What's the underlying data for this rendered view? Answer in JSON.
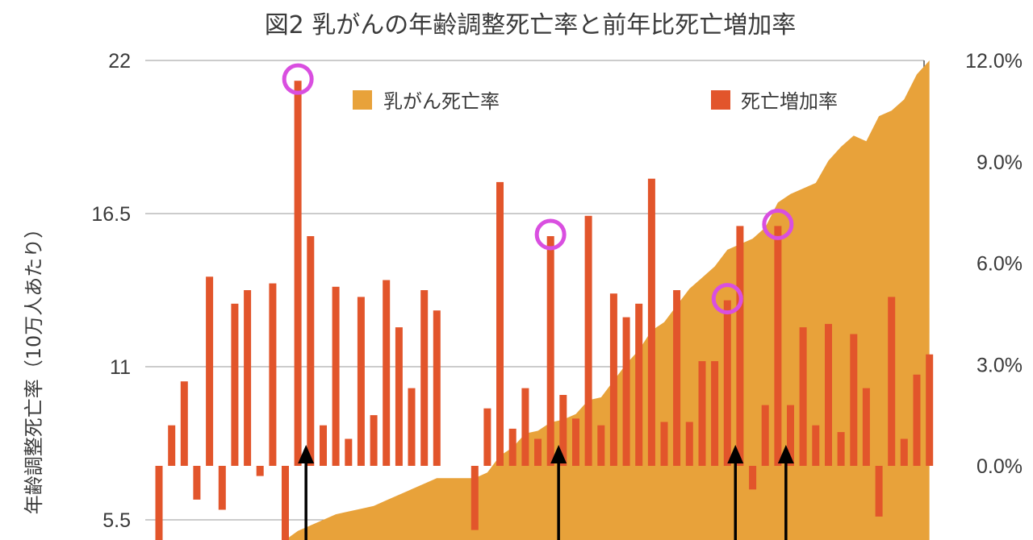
{
  "chart_data": {
    "type": "bar+area",
    "title": "図2 乳がんの年齢調整死亡率と前年比死亡増加率",
    "ylabel_left": "年齢調整死亡率（10万人あたり）",
    "y_left_ticks": [
      "22",
      "16.5",
      "11",
      "5.5"
    ],
    "y_left_values": [
      22,
      16.5,
      11,
      5.5
    ],
    "y_right_ticks": [
      "12.0%",
      "9.0%",
      "6.0%",
      "3.0%",
      "0.0%"
    ],
    "y_right_values": [
      12,
      9,
      6,
      3,
      0
    ],
    "ylim_left": [
      3,
      22.5
    ],
    "legend": {
      "placement": "top",
      "area_label": "乳がん死亡率",
      "bar_label": "死亡増加率"
    },
    "colors": {
      "area": "#E8A23A",
      "bar": "#E2552B",
      "highlight_circle": "#D94FE0",
      "arrow": "#000000"
    },
    "series": [
      {
        "name": "死亡増加率",
        "kind": "bar",
        "unit": "%",
        "values": [
          -3.1,
          1.2,
          2.5,
          -1.0,
          5.6,
          -1.3,
          4.8,
          5.2,
          -0.3,
          5.4,
          -3.1,
          11.4,
          6.8,
          1.2,
          5.3,
          0.8,
          5.0,
          1.5,
          5.5,
          4.1,
          2.3,
          5.2,
          4.6,
          0,
          0,
          -1.9,
          1.7,
          8.4,
          1.1,
          2.3,
          0.8,
          6.8,
          2.1,
          1.4,
          7.4,
          1.2,
          5.1,
          4.4,
          4.8,
          8.5,
          1.3,
          5.2,
          1.3,
          3.1,
          3.1,
          4.9,
          7.1,
          -0.7,
          1.8,
          7.1,
          1.8,
          4.1,
          1.2,
          4.2,
          1.0,
          3.9,
          2.3,
          -1.5,
          5.0,
          0.8,
          2.7,
          3.3
        ]
      },
      {
        "name": "乳がん死亡率",
        "kind": "area",
        "unit": "per 100k",
        "values": [
          3.0,
          3.0,
          3.0,
          3.0,
          3.0,
          3.0,
          3.0,
          3.0,
          3.0,
          3.0,
          3.0,
          5.1,
          5.3,
          5.5,
          5.7,
          5.8,
          5.9,
          6.0,
          6.2,
          6.4,
          6.6,
          6.8,
          7.0,
          7.0,
          7.0,
          7.0,
          7.2,
          7.8,
          8.1,
          8.6,
          8.7,
          9.0,
          9.1,
          9.3,
          9.8,
          9.9,
          10.5,
          11.1,
          11.6,
          12.3,
          12.6,
          13.2,
          13.8,
          14.2,
          14.6,
          15.2,
          15.4,
          15.6,
          16.0,
          16.9,
          17.2,
          17.4,
          17.6,
          18.4,
          18.9,
          19.3,
          19.1,
          20.0,
          20.2,
          20.6,
          21.5,
          22.0
        ]
      }
    ],
    "highlighted_indices": [
      11,
      31,
      45,
      49
    ],
    "arrow_indices": [
      11,
      31,
      45,
      49
    ]
  }
}
